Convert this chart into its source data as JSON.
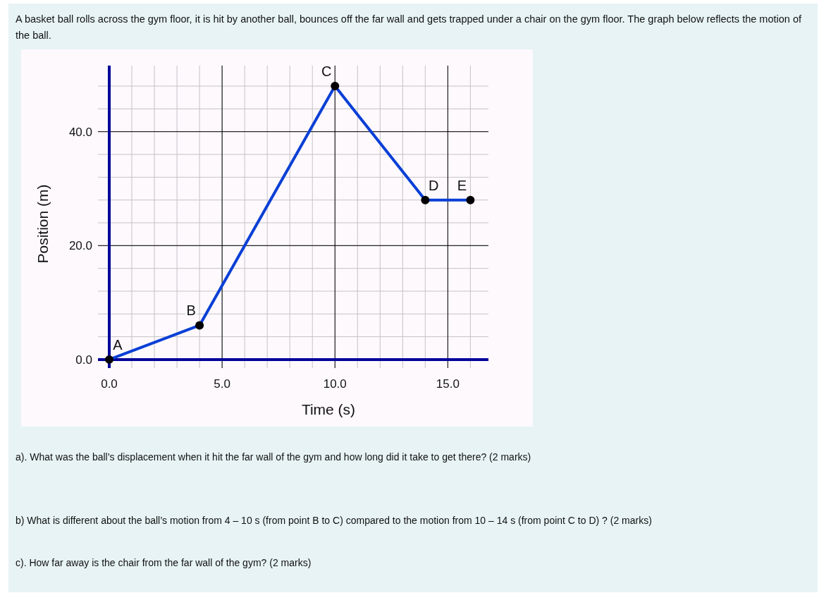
{
  "chart_data": {
    "type": "line",
    "title": "A basket ball rolls across the gym floor, it is hit by another ball, bounces off the far wall and gets trapped under a chair on the gym floor.  The graph below reflects the motion of the ball.",
    "xlabel": "Time (s)",
    "ylabel": "Position (m)",
    "x": [
      0,
      4,
      10,
      14,
      16
    ],
    "series": [
      {
        "color": "#0a3fd6",
        "values": [
          0,
          6,
          48,
          28,
          28
        ]
      }
    ],
    "xlim": [
      -0.5,
      16.8
    ],
    "ylim": [
      -1.5,
      51.6
    ],
    "xticks": [
      {
        "value": 0,
        "label": "0.0"
      },
      {
        "value": 5,
        "label": "5.0"
      },
      {
        "value": 10,
        "label": "10.0"
      },
      {
        "value": 15,
        "label": "15.0"
      }
    ],
    "yticks": [
      {
        "value": 0,
        "label": "0.0"
      },
      {
        "value": 20,
        "label": "20.0"
      },
      {
        "value": 40,
        "label": "40.0"
      }
    ],
    "grid": true,
    "marker": "circle",
    "line_style": "solid",
    "annotations": [
      {
        "text": "A",
        "x": 0,
        "y": 0
      },
      {
        "text": "B",
        "x": 4,
        "y": 6
      },
      {
        "text": "C",
        "x": 10,
        "y": 48
      },
      {
        "text": "D",
        "x": 14,
        "y": 28
      },
      {
        "text": "E",
        "x": 16,
        "y": 28
      },
      "a). What was the ball’s displacement when it hit the far wall of the gym and how long did it take to get there? (2 marks)",
      "b)  What is different about the ball’s motion from 4 – 10 s (from point B to C) compared to the motion from 10 – 14 s (from point C to D) ? (2 marks)",
      "c).  How far away is the chair from the far wall of the gym? (2 marks)"
    ]
  }
}
